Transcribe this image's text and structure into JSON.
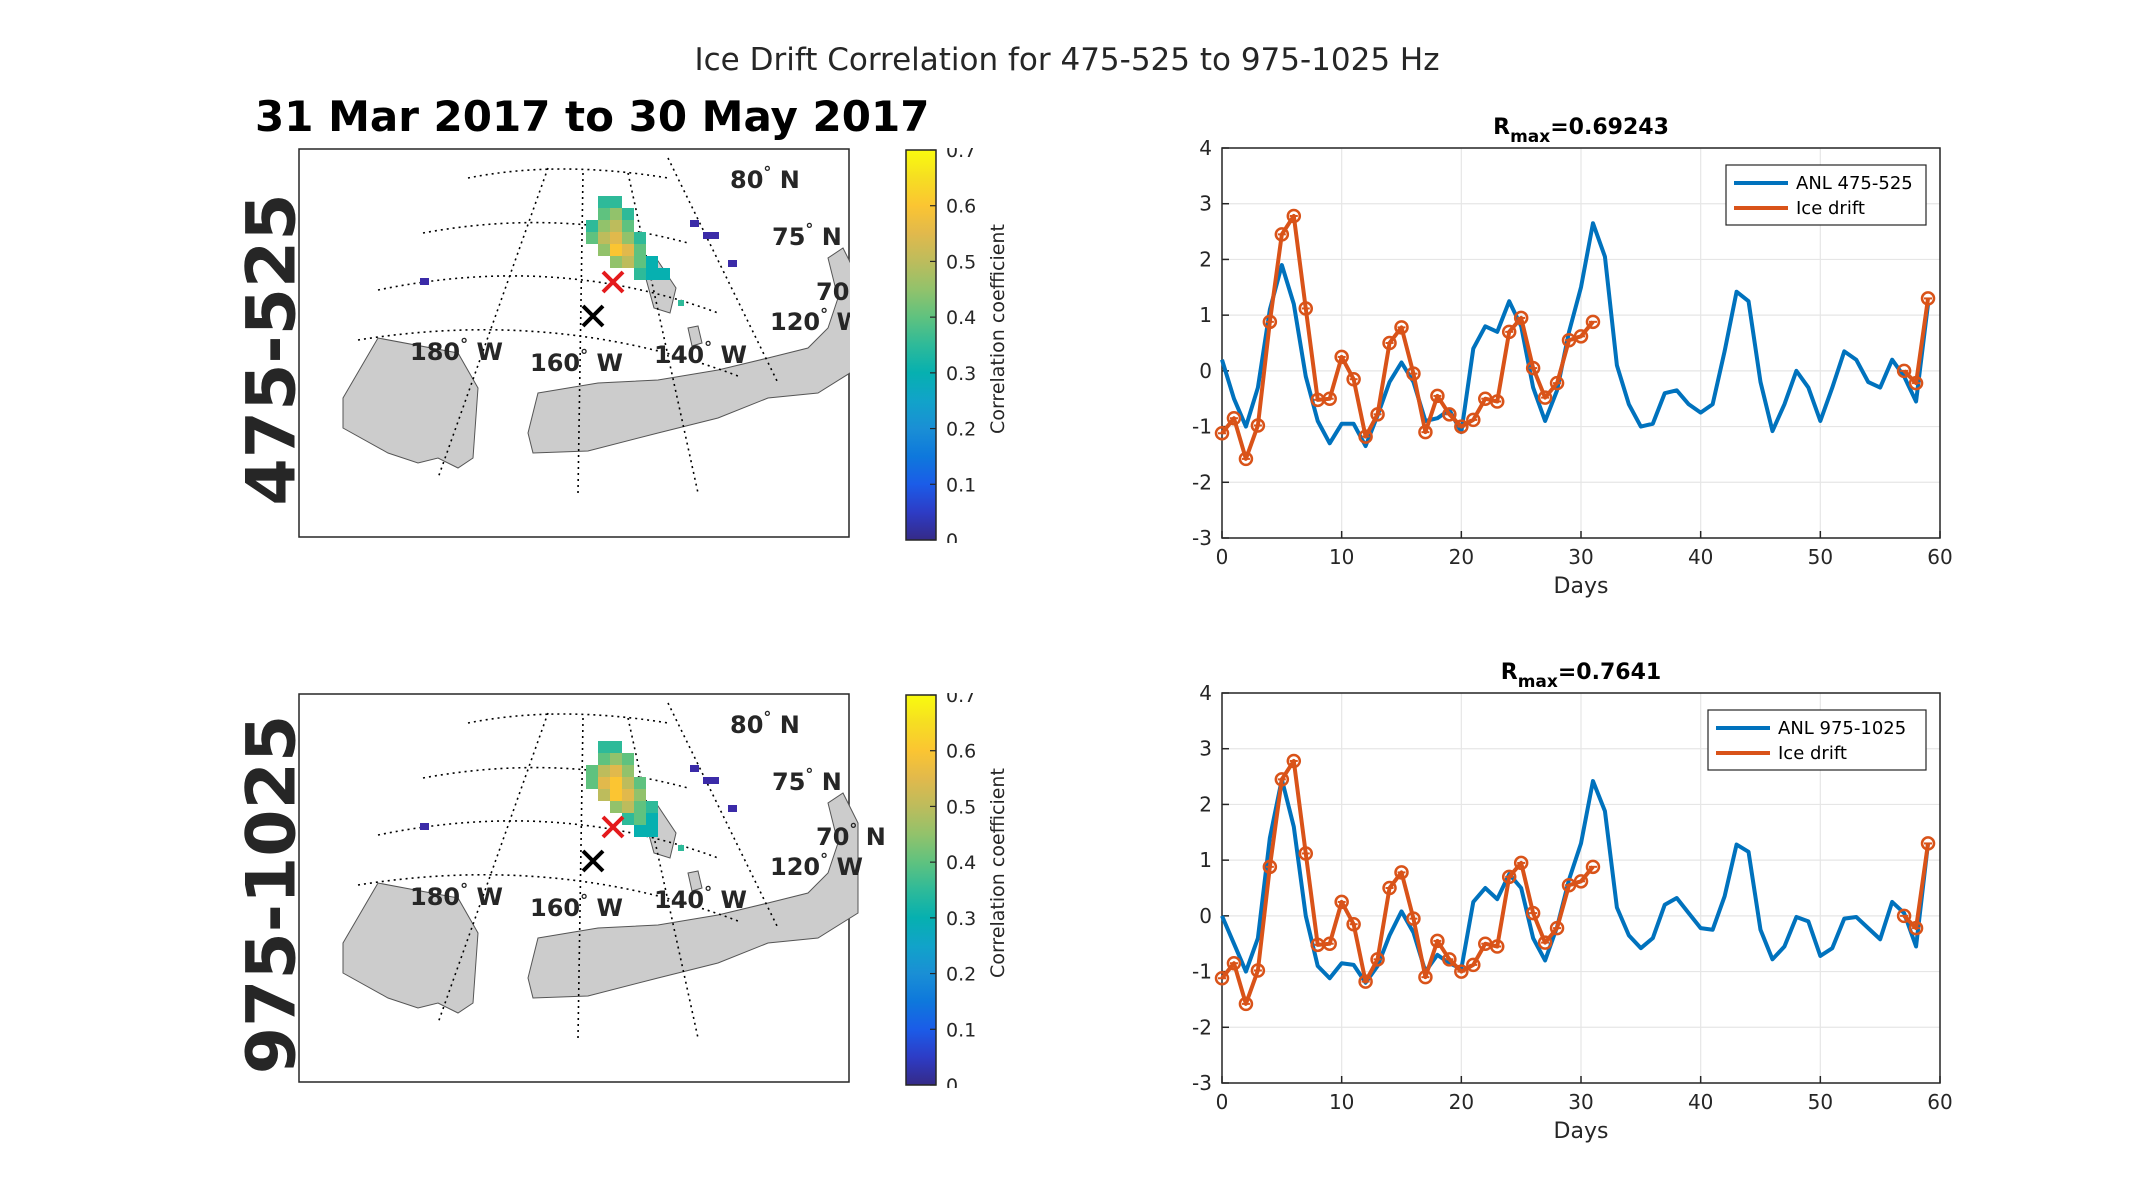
{
  "figure": {
    "title": "Ice Drift Correlation for 475-525 to 975-1025 Hz",
    "period": "31 Mar 2017 to 30 May 2017"
  },
  "maps": [
    {
      "row_label": "475-525",
      "lat_labels": [
        "80",
        "75",
        "70"
      ],
      "lon_labels": [
        "180",
        "160",
        "140",
        "120"
      ],
      "lat_suffix": "N",
      "lon_suffix": "W",
      "degree": "°",
      "colorbar": {
        "label": "Correlation coefficient",
        "ticks": [
          "0",
          "0.1",
          "0.2",
          "0.3",
          "0.4",
          "0.5",
          "0.6",
          "0.7"
        ],
        "range": [
          0,
          0.7
        ]
      },
      "markers": {
        "red": "red-x-marker",
        "black": "black-x-marker"
      }
    },
    {
      "row_label": "975-1025",
      "lat_labels": [
        "80",
        "75",
        "70"
      ],
      "lon_labels": [
        "180",
        "160",
        "140",
        "120"
      ],
      "lat_suffix": "N",
      "lon_suffix": "W",
      "degree": "°",
      "colorbar": {
        "label": "Correlation coefficient",
        "ticks": [
          "0",
          "0.1",
          "0.2",
          "0.3",
          "0.4",
          "0.5",
          "0.6",
          "0.7"
        ],
        "range": [
          0,
          0.7
        ]
      },
      "markers": {
        "red": "red-x-marker",
        "black": "black-x-marker"
      }
    }
  ],
  "chart_data": [
    {
      "type": "line",
      "title_prefix": "R",
      "title_subscript": "max",
      "title_value": "=0.69243",
      "xlabel": "Days",
      "ylabel": "",
      "xlim": [
        0,
        60
      ],
      "ylim": [
        -3,
        4
      ],
      "xticks": [
        0,
        10,
        20,
        30,
        40,
        50,
        60
      ],
      "yticks": [
        -3,
        -2,
        -1,
        0,
        1,
        2,
        3,
        4
      ],
      "grid": true,
      "legend_position": "top-right",
      "series": [
        {
          "name": "ANL 475-525",
          "color": "#0072BD",
          "x": [
            0,
            1,
            2,
            3,
            4,
            5,
            6,
            7,
            8,
            9,
            10,
            11,
            12,
            13,
            14,
            15,
            16,
            17,
            18,
            19,
            20,
            21,
            22,
            23,
            24,
            25,
            26,
            27,
            28,
            29,
            30,
            31,
            32,
            33,
            34,
            35,
            36,
            37,
            38,
            39,
            40,
            41,
            42,
            43,
            44,
            45,
            46,
            47,
            48,
            49,
            50,
            51,
            52,
            53,
            54,
            55,
            56,
            57,
            58,
            59
          ],
          "y": [
            0.2,
            -0.5,
            -1.0,
            -0.3,
            1.1,
            1.9,
            1.2,
            -0.1,
            -0.9,
            -1.3,
            -0.95,
            -0.95,
            -1.35,
            -0.8,
            -0.2,
            0.15,
            -0.2,
            -0.9,
            -0.85,
            -0.7,
            -1.1,
            0.4,
            0.8,
            0.7,
            1.25,
            0.8,
            -0.3,
            -0.9,
            -0.35,
            0.7,
            1.5,
            2.65,
            2.05,
            0.1,
            -0.6,
            -1.0,
            -0.95,
            -0.4,
            -0.35,
            -0.6,
            -0.75,
            -0.6,
            0.35,
            1.42,
            1.25,
            -0.2,
            -1.08,
            -0.6,
            0.0,
            -0.3,
            -0.9,
            -0.3,
            0.35,
            0.2,
            -0.2,
            -0.3,
            0.2,
            -0.1,
            -0.55,
            1.2
          ]
        },
        {
          "name": "Ice drift",
          "color": "#D95319",
          "markers": true,
          "x": [
            0,
            1,
            2,
            3,
            4,
            5,
            6,
            7,
            8,
            9,
            10,
            11,
            12,
            13,
            14,
            15,
            16,
            17,
            18,
            19,
            20,
            21,
            22,
            23,
            24,
            25,
            26,
            27,
            28,
            29,
            30,
            31,
            57,
            58,
            59
          ],
          "y": [
            -1.12,
            -0.85,
            -1.58,
            -0.98,
            0.88,
            2.45,
            2.78,
            1.12,
            -0.52,
            -0.5,
            0.25,
            -0.15,
            -1.18,
            -0.78,
            0.5,
            0.78,
            -0.05,
            -1.1,
            -0.45,
            -0.78,
            -1.0,
            -0.88,
            -0.5,
            -0.55,
            0.7,
            0.95,
            0.05,
            -0.48,
            -0.22,
            0.55,
            0.62,
            0.88,
            0.0,
            -0.22,
            1.3
          ]
        }
      ]
    },
    {
      "type": "line",
      "title_prefix": "R",
      "title_subscript": "max",
      "title_value": "=0.7641",
      "xlabel": "Days",
      "ylabel": "",
      "xlim": [
        0,
        60
      ],
      "ylim": [
        -3,
        4
      ],
      "xticks": [
        0,
        10,
        20,
        30,
        40,
        50,
        60
      ],
      "yticks": [
        -3,
        -2,
        -1,
        0,
        1,
        2,
        3,
        4
      ],
      "grid": true,
      "legend_position": "top-right",
      "series": [
        {
          "name": "ANL 975-1025",
          "color": "#0072BD",
          "x": [
            0,
            1,
            2,
            3,
            4,
            5,
            6,
            7,
            8,
            9,
            10,
            11,
            12,
            13,
            14,
            15,
            16,
            17,
            18,
            19,
            20,
            21,
            22,
            23,
            24,
            25,
            26,
            27,
            28,
            29,
            30,
            31,
            32,
            33,
            34,
            35,
            36,
            37,
            38,
            39,
            40,
            41,
            42,
            43,
            44,
            45,
            46,
            47,
            48,
            49,
            50,
            51,
            52,
            53,
            54,
            55,
            56,
            57,
            58,
            59
          ],
          "y": [
            0.0,
            -0.5,
            -1.0,
            -0.4,
            1.4,
            2.45,
            1.6,
            0.0,
            -0.9,
            -1.12,
            -0.85,
            -0.88,
            -1.2,
            -0.9,
            -0.35,
            0.08,
            -0.3,
            -1.0,
            -0.7,
            -0.85,
            -0.95,
            0.25,
            0.5,
            0.3,
            0.75,
            0.5,
            -0.4,
            -0.8,
            -0.2,
            0.65,
            1.3,
            2.42,
            1.88,
            0.15,
            -0.35,
            -0.58,
            -0.4,
            0.2,
            0.32,
            0.05,
            -0.22,
            -0.25,
            0.35,
            1.28,
            1.15,
            -0.25,
            -0.78,
            -0.55,
            -0.02,
            -0.1,
            -0.72,
            -0.58,
            -0.05,
            -0.02,
            -0.22,
            -0.42,
            0.25,
            0.05,
            -0.55,
            1.3
          ]
        },
        {
          "name": "Ice drift",
          "color": "#D95319",
          "markers": true,
          "x": [
            0,
            1,
            2,
            3,
            4,
            5,
            6,
            7,
            8,
            9,
            10,
            11,
            12,
            13,
            14,
            15,
            16,
            17,
            18,
            19,
            20,
            21,
            22,
            23,
            24,
            25,
            26,
            27,
            28,
            29,
            30,
            31,
            57,
            58,
            59
          ],
          "y": [
            -1.12,
            -0.85,
            -1.58,
            -0.98,
            0.88,
            2.45,
            2.78,
            1.12,
            -0.52,
            -0.5,
            0.25,
            -0.15,
            -1.18,
            -0.78,
            0.5,
            0.78,
            -0.05,
            -1.1,
            -0.45,
            -0.78,
            -1.0,
            -0.88,
            -0.5,
            -0.55,
            0.7,
            0.95,
            0.05,
            -0.48,
            -0.22,
            0.55,
            0.62,
            0.88,
            0.0,
            -0.22,
            1.3
          ]
        }
      ]
    }
  ]
}
